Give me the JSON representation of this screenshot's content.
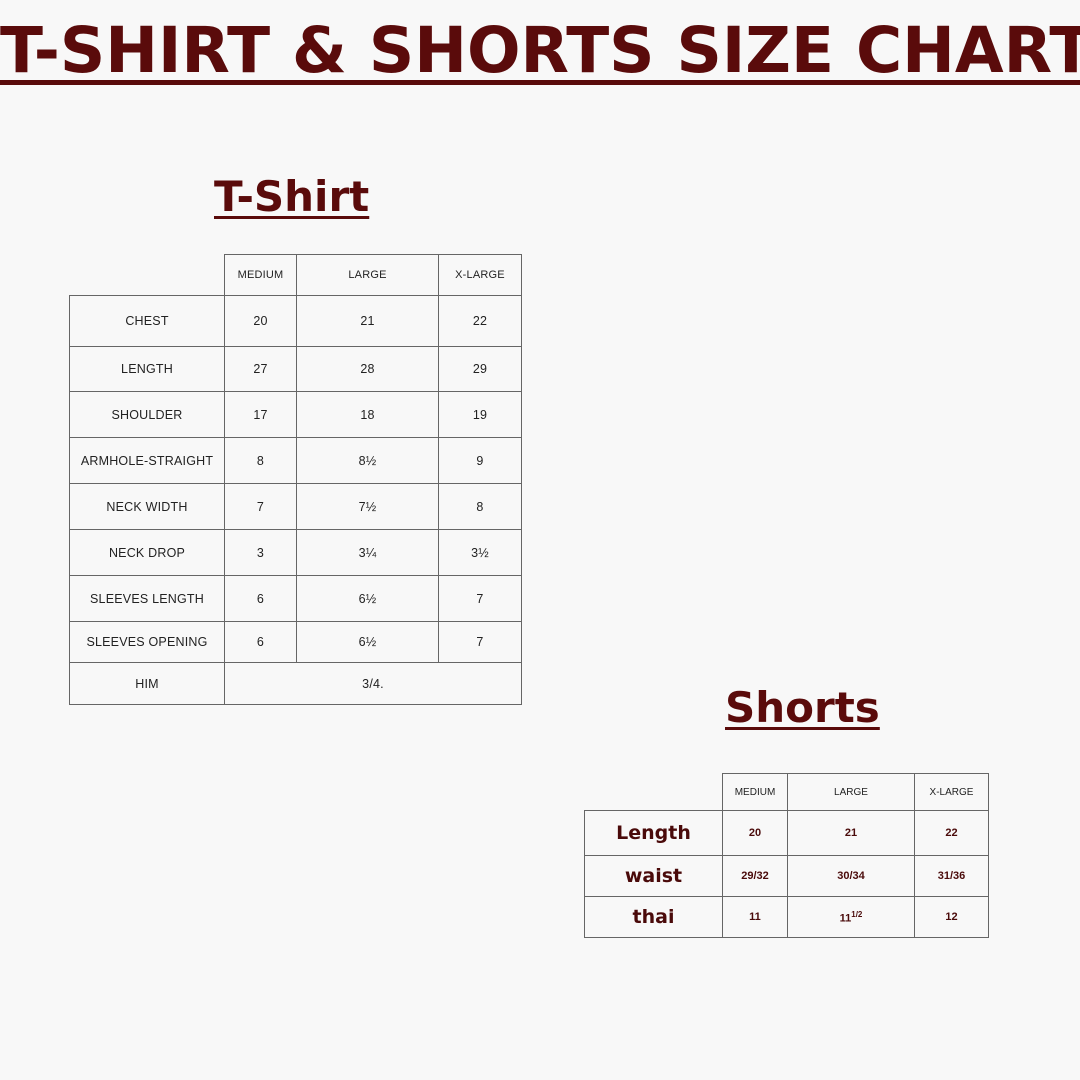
{
  "title": "T-SHIRT & SHORTS SIZE CHART",
  "tshirt": {
    "heading": "T-Shirt",
    "columns": [
      "MEDIUM",
      "LARGE",
      "X-LARGE"
    ],
    "rows": [
      {
        "label": "CHEST",
        "values": [
          "20",
          "21",
          "22"
        ]
      },
      {
        "label": "LENGTH",
        "values": [
          "27",
          "28",
          "29"
        ]
      },
      {
        "label": "SHOULDER",
        "values": [
          "17",
          "18",
          "19"
        ]
      },
      {
        "label": "ARMHOLE-STRAIGHT",
        "values": [
          "8",
          "8½",
          "9"
        ]
      },
      {
        "label": "NECK WIDTH",
        "values": [
          "7",
          "7½",
          "8"
        ]
      },
      {
        "label": "NECK DROP",
        "values": [
          "3",
          "3¼",
          "3½"
        ]
      },
      {
        "label": "SLEEVES LENGTH",
        "values": [
          "6",
          "6½",
          "7"
        ]
      },
      {
        "label": "SLEEVES OPENING",
        "values": [
          "6",
          "6½",
          "7"
        ]
      }
    ],
    "hem": {
      "label": "HIM",
      "value": "3/4."
    }
  },
  "shorts": {
    "heading": "Shorts",
    "columns": [
      "MEDIUM",
      "LARGE",
      "X-LARGE"
    ],
    "rows": [
      {
        "label": "Length",
        "values": [
          "20",
          "21",
          "22"
        ]
      },
      {
        "label": "waist",
        "values": [
          "29/32",
          "30/34",
          "31/36"
        ]
      },
      {
        "label": "thai",
        "values": [
          "11",
          "11",
          "12"
        ]
      }
    ],
    "thai_large_sup": "1/2"
  },
  "colors": {
    "accent": "#5a0b0b",
    "grid": "#666666",
    "background": "#f8f8f8"
  }
}
